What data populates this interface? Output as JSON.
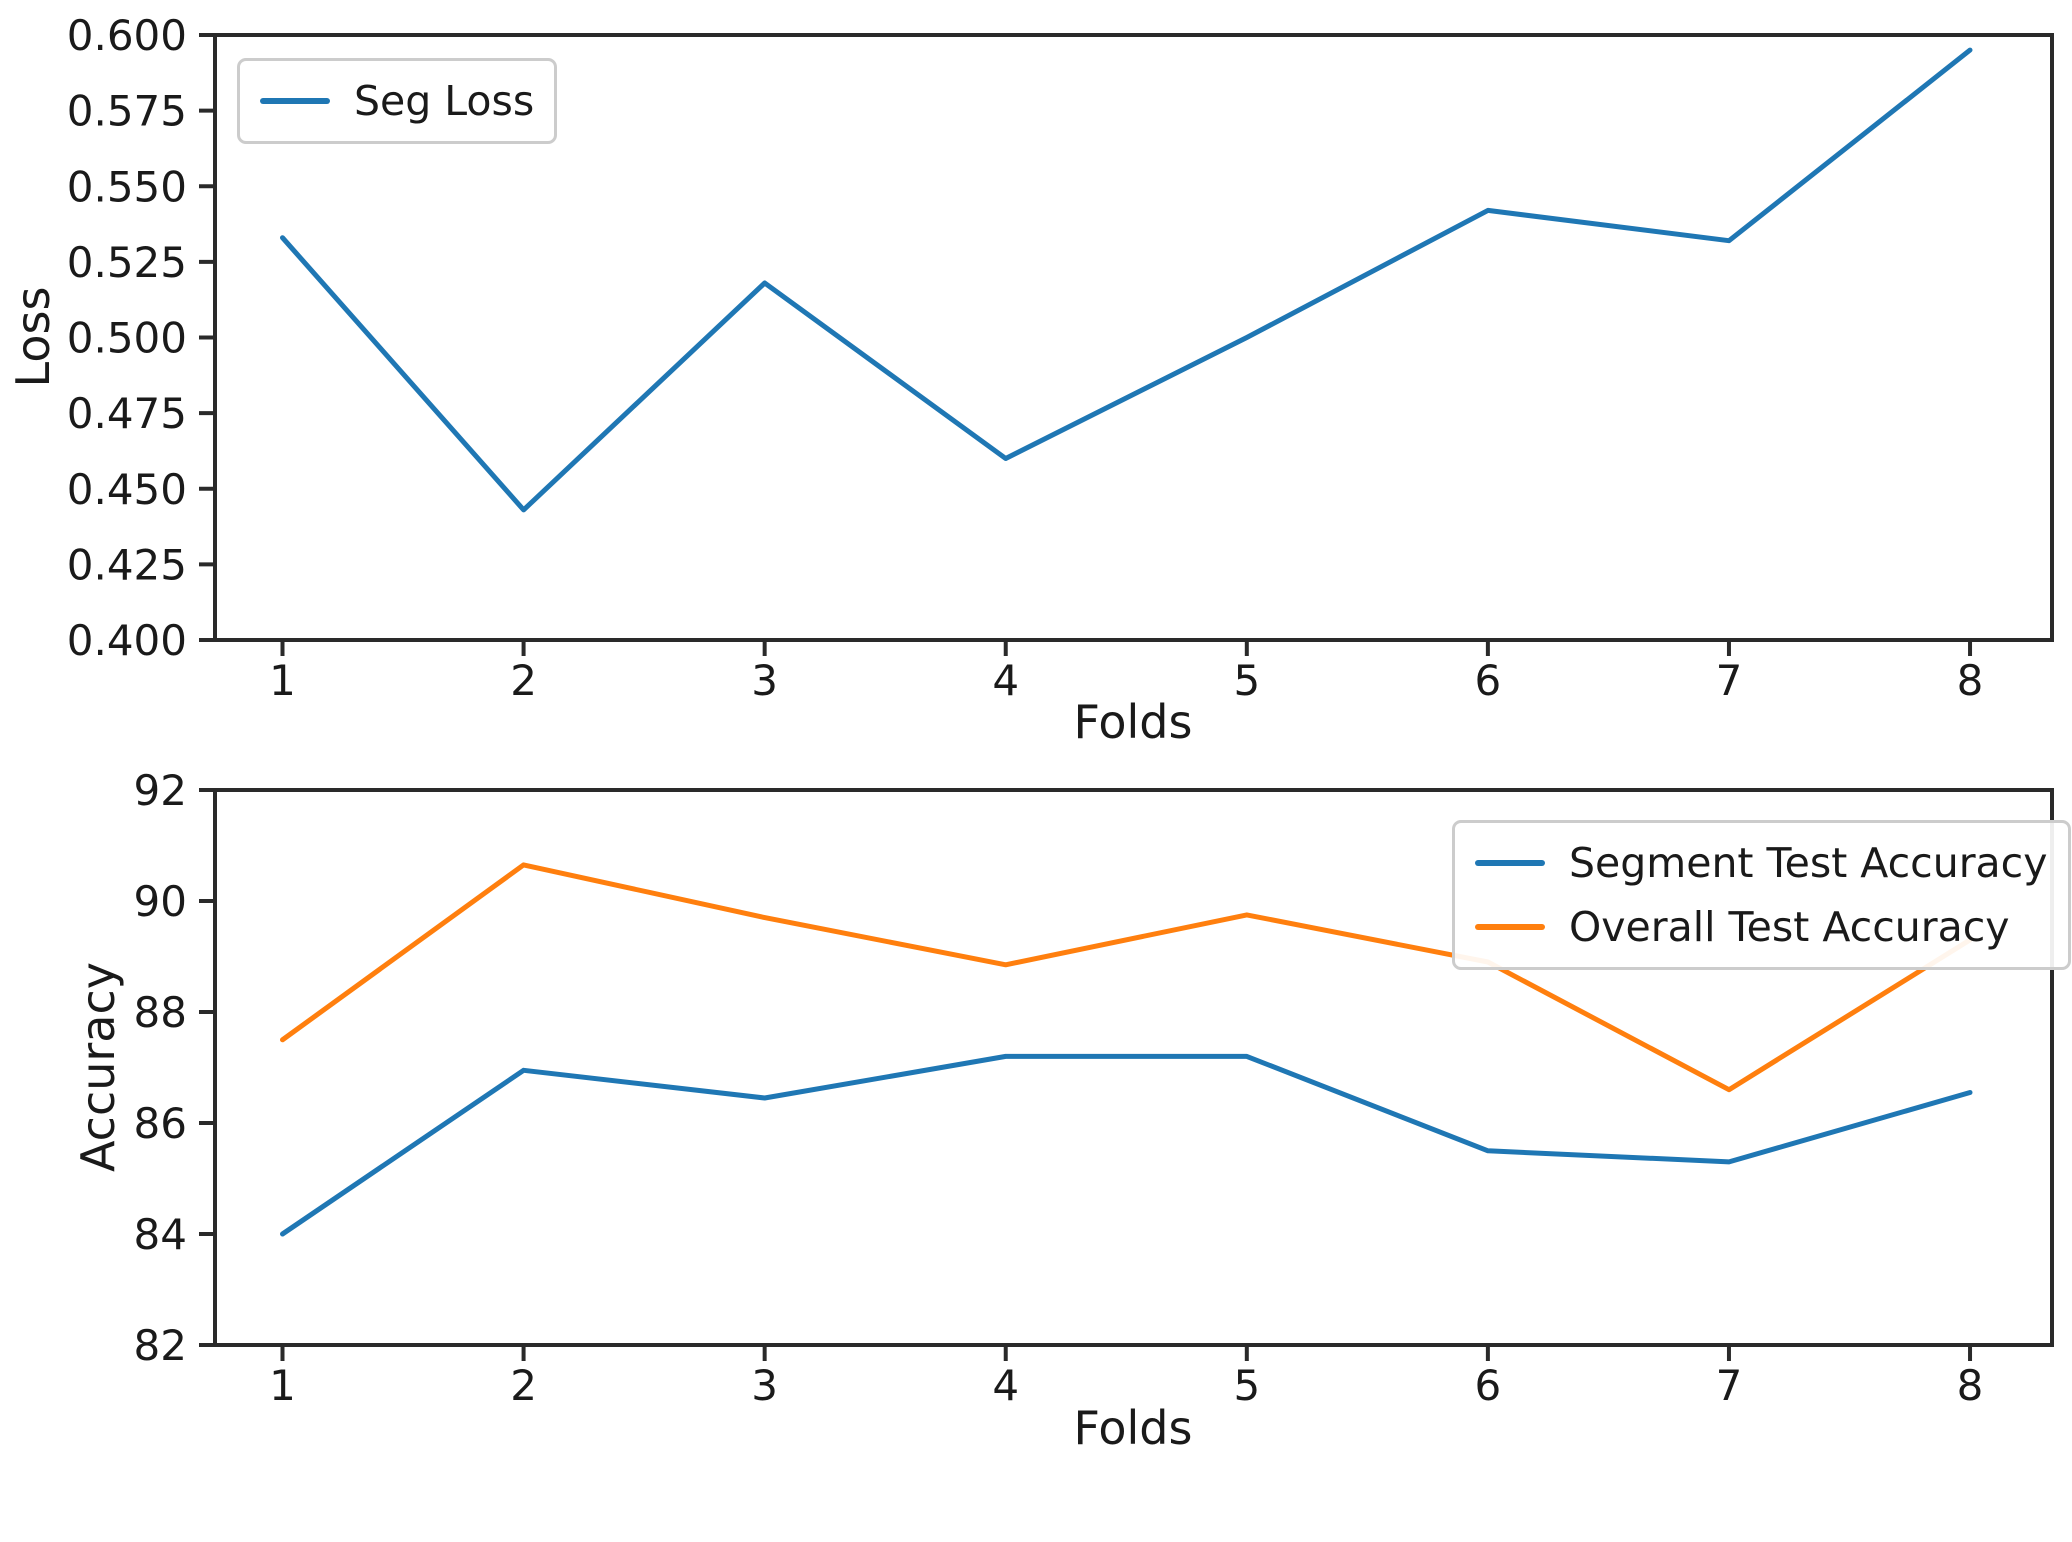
{
  "figure": {
    "background": "#ffffff"
  },
  "colors": {
    "axis": "#2a2a2a",
    "text": "#1a1a1a",
    "legend_border": "#cccccc",
    "blue": "#1f77b4",
    "orange": "#ff7f0e"
  },
  "chart_data": [
    {
      "type": "line",
      "title": "",
      "xlabel": "Folds",
      "ylabel": "Loss",
      "x": [
        1,
        2,
        3,
        4,
        5,
        6,
        7,
        8
      ],
      "xtick_labels": [
        "1",
        "2",
        "3",
        "4",
        "5",
        "6",
        "7",
        "8"
      ],
      "xlim": [
        0.72,
        8.34
      ],
      "ylim": [
        0.4,
        0.6
      ],
      "yticks": [
        0.4,
        0.425,
        0.45,
        0.475,
        0.5,
        0.525,
        0.55,
        0.575,
        0.6
      ],
      "ytick_labels": [
        "0.400",
        "0.425",
        "0.450",
        "0.475",
        "0.500",
        "0.525",
        "0.550",
        "0.575",
        "0.600"
      ],
      "grid": false,
      "legend_position": "upper-left",
      "series": [
        {
          "name": "Seg Loss",
          "color": "#1f77b4",
          "values": [
            0.533,
            0.443,
            0.518,
            0.46,
            0.5,
            0.542,
            0.532,
            0.595
          ]
        }
      ]
    },
    {
      "type": "line",
      "title": "",
      "xlabel": "Folds",
      "ylabel": "Accuracy",
      "x": [
        1,
        2,
        3,
        4,
        5,
        6,
        7,
        8
      ],
      "xtick_labels": [
        "1",
        "2",
        "3",
        "4",
        "5",
        "6",
        "7",
        "8"
      ],
      "xlim": [
        0.72,
        8.34
      ],
      "ylim": [
        82,
        92
      ],
      "yticks": [
        82,
        84,
        86,
        88,
        90,
        92
      ],
      "ytick_labels": [
        "82",
        "84",
        "86",
        "88",
        "90",
        "92"
      ],
      "grid": false,
      "legend_position": "upper-right",
      "series": [
        {
          "name": "Segment Test Accuracy",
          "color": "#1f77b4",
          "values": [
            84.0,
            86.95,
            86.45,
            87.2,
            87.2,
            85.5,
            85.3,
            86.55
          ]
        },
        {
          "name": "Overall Test Accuracy",
          "color": "#ff7f0e",
          "values": [
            87.5,
            90.65,
            89.7,
            88.85,
            89.75,
            88.9,
            86.6,
            89.3
          ]
        }
      ]
    }
  ]
}
